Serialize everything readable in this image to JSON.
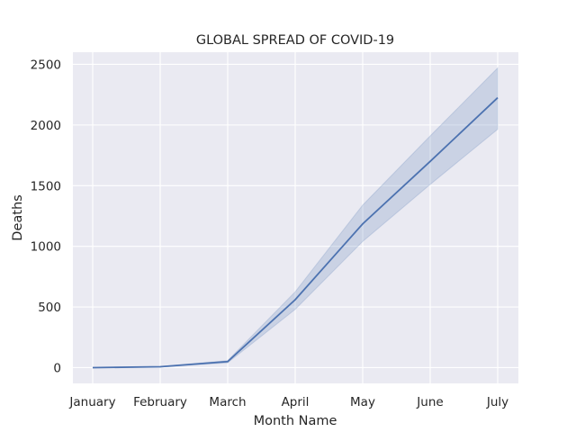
{
  "chart_data": {
    "type": "line",
    "title": "GLOBAL SPREAD OF COVID-19",
    "xlabel": "Month Name",
    "ylabel": "Deaths",
    "categories": [
      "January",
      "February",
      "March",
      "April",
      "May",
      "June",
      "July"
    ],
    "series": [
      {
        "values": [
          0,
          7,
          50,
          560,
          1185,
          1700,
          2225
        ],
        "ci_lower": [
          0,
          5,
          40,
          480,
          1040,
          1510,
          1965
        ],
        "ci_upper": [
          0,
          9,
          58,
          625,
          1340,
          1910,
          2470
        ]
      }
    ],
    "yticks": [
      0,
      500,
      1000,
      1500,
      2000,
      2500
    ],
    "ylim": [
      -130,
      2600
    ],
    "grid": true,
    "style": {
      "background": "#eaeaf2",
      "grid_color": "#ffffff",
      "line_color": "#4c72b0",
      "band_color": "#4c72b0"
    }
  }
}
